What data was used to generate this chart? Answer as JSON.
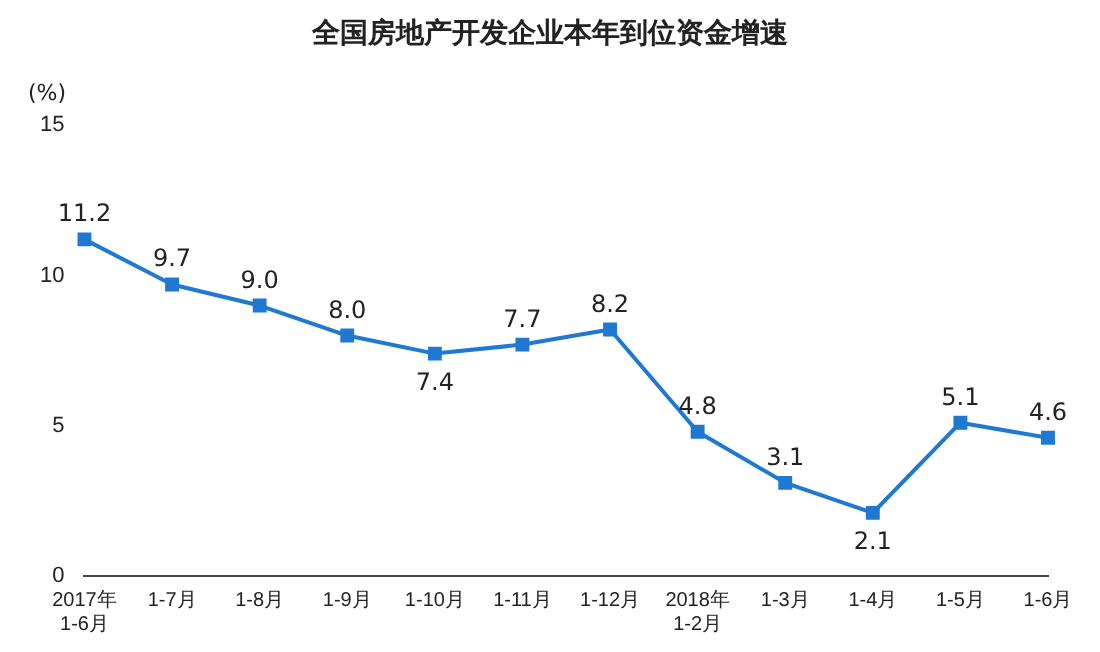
{
  "chart_data": {
    "type": "line",
    "title": "全国房地产开发企业本年到位资金增速",
    "ylabel": "(%)",
    "categories": [
      "2017年\n1-6月",
      "1-7月",
      "1-8月",
      "1-9月",
      "1-10月",
      "1-11月",
      "1-12月",
      "2018年\n1-2月",
      "1-3月",
      "1-4月",
      "1-5月",
      "1-6月"
    ],
    "series": [
      {
        "color": "#1f78d1",
        "values": [
          11.2,
          9.7,
          9.0,
          8.0,
          7.4,
          7.7,
          8.2,
          4.8,
          3.1,
          2.1,
          5.1,
          4.6
        ],
        "value_labels": [
          "11.2",
          "9.7",
          "9.0",
          "8.0",
          "7.4",
          "7.7",
          "8.2",
          "4.8",
          "3.1",
          "2.1",
          "5.1",
          "4.6"
        ]
      }
    ],
    "ylim": [
      0,
      15
    ],
    "yticks": [
      0,
      5,
      10,
      15
    ],
    "grid": false,
    "legend": false,
    "marker": "square",
    "line_style": "solid"
  }
}
